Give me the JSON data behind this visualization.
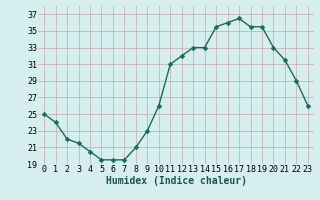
{
  "x": [
    0,
    1,
    2,
    3,
    4,
    5,
    6,
    7,
    8,
    9,
    10,
    11,
    12,
    13,
    14,
    15,
    16,
    17,
    18,
    19,
    20,
    21,
    22,
    23
  ],
  "y": [
    25,
    24,
    22,
    21.5,
    20.5,
    19.5,
    19.5,
    19.5,
    21,
    23,
    26,
    31,
    32,
    33,
    33,
    35.5,
    36,
    36.5,
    35.5,
    35.5,
    33,
    31.5,
    29,
    26
  ],
  "line_color": "#1a6b5a",
  "marker": "D",
  "marker_size": 2.5,
  "linewidth": 1.0,
  "bg_color": "#d6eeee",
  "grid_color": "#c8a8a8",
  "xlabel": "Humidex (Indice chaleur)",
  "xlabel_fontsize": 7,
  "tick_fontsize": 6,
  "ylim": [
    19,
    38
  ],
  "xlim": [
    -0.5,
    23.5
  ],
  "yticks": [
    19,
    21,
    23,
    25,
    27,
    29,
    31,
    33,
    35,
    37
  ],
  "xticks": [
    0,
    1,
    2,
    3,
    4,
    5,
    6,
    7,
    8,
    9,
    10,
    11,
    12,
    13,
    14,
    15,
    16,
    17,
    18,
    19,
    20,
    21,
    22,
    23
  ]
}
